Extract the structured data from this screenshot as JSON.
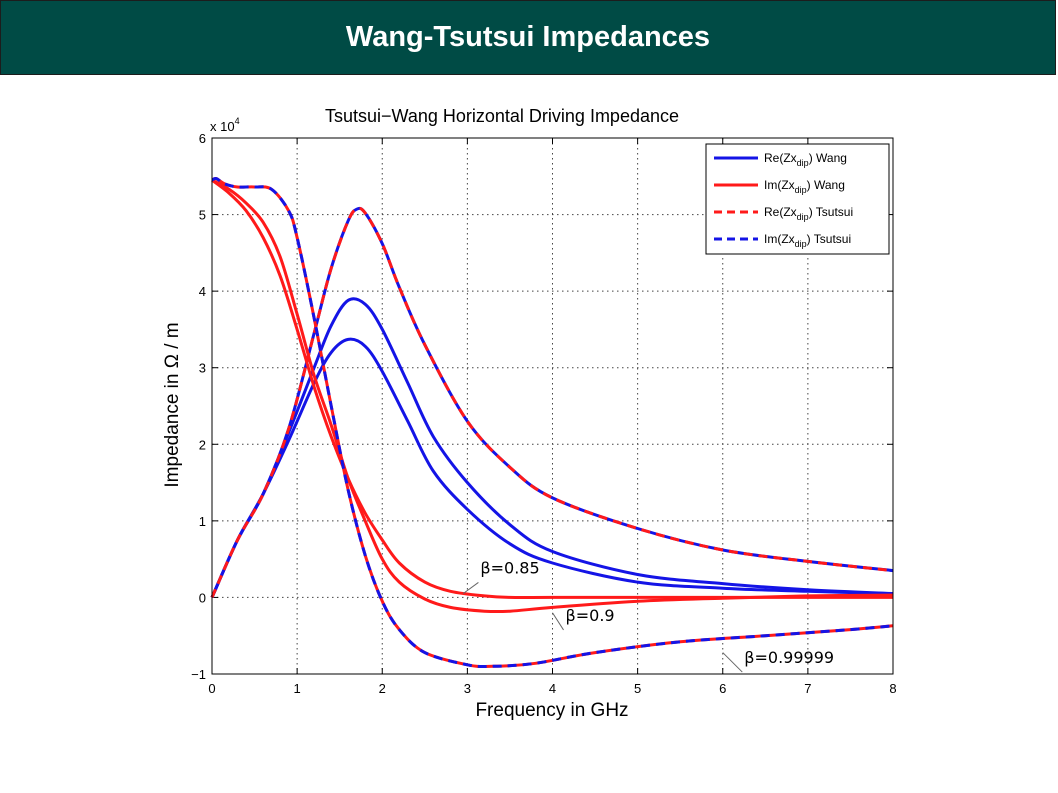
{
  "banner": {
    "title": "Wang-Tsutsui Impedances"
  },
  "colors": {
    "banner_bg": "#004b45",
    "red": "#ff1a1a",
    "blue": "#1414e6"
  },
  "chart_data": {
    "type": "line",
    "title": "Tsutsui−Wang Horizontal Driving Impedance",
    "xlabel": "Frequency in GHz",
    "ylabel": "Impedance in Ω / m",
    "y_multiplier": "x 10",
    "y_multiplier_exp": "4",
    "xlim": [
      0,
      8
    ],
    "ylim": [
      -1,
      6
    ],
    "xticks": [
      0,
      1,
      2,
      3,
      4,
      5,
      6,
      7,
      8
    ],
    "yticks": [
      -1,
      0,
      1,
      2,
      3,
      4,
      5,
      6
    ],
    "xtick_labels": [
      "0",
      "1",
      "2",
      "3",
      "4",
      "5",
      "6",
      "7",
      "8"
    ],
    "ytick_labels": [
      "−1",
      "0",
      "1",
      "2",
      "3",
      "4",
      "5",
      "6"
    ],
    "grid": true,
    "legend_position": "top-right",
    "legend": [
      {
        "base": "Re(Zx",
        "sub": "dip",
        "tail": ") Wang",
        "color": "blue",
        "dash": false
      },
      {
        "base": "Im(Zx",
        "sub": "dip",
        "tail": ") Wang",
        "color": "red",
        "dash": false
      },
      {
        "base": "Re(Zx",
        "sub": "dip",
        "tail": ") Tsutsui",
        "color": "red",
        "dash": true
      },
      {
        "base": "Im(Zx",
        "sub": "dip",
        "tail": ") Tsutsui",
        "color": "blue",
        "dash": true
      }
    ],
    "series": [
      {
        "group": "Re Wang β=0.99999",
        "color": "blue",
        "dash": false,
        "x": [
          0,
          0.3,
          0.6,
          0.9,
          1.2,
          1.4,
          1.6,
          1.7,
          1.8,
          2.0,
          2.2,
          2.5,
          3.0,
          3.5,
          4.0,
          5.0,
          6.0,
          7.0,
          8.0
        ],
        "y": [
          0,
          0.75,
          1.35,
          2.2,
          3.45,
          4.3,
          4.92,
          5.07,
          5.02,
          4.62,
          4.05,
          3.3,
          2.3,
          1.7,
          1.3,
          0.9,
          0.62,
          0.47,
          0.35
        ]
      },
      {
        "group": "Re Wang β=0.9",
        "color": "blue",
        "dash": false,
        "x": [
          0,
          0.3,
          0.6,
          0.9,
          1.2,
          1.4,
          1.6,
          1.8,
          2.0,
          2.3,
          2.6,
          3.0,
          3.5,
          4.0,
          5.0,
          6.0,
          7.0,
          8.0
        ],
        "y": [
          0,
          0.75,
          1.35,
          2.15,
          3.0,
          3.55,
          3.88,
          3.83,
          3.5,
          2.8,
          2.1,
          1.5,
          0.95,
          0.6,
          0.3,
          0.18,
          0.1,
          0.05
        ]
      },
      {
        "group": "Re Wang β=0.85",
        "color": "blue",
        "dash": false,
        "x": [
          0,
          0.3,
          0.6,
          0.9,
          1.2,
          1.4,
          1.6,
          1.8,
          2.0,
          2.3,
          2.6,
          3.0,
          3.5,
          4.0,
          5.0,
          6.0,
          7.0,
          8.0
        ],
        "y": [
          0,
          0.75,
          1.35,
          2.05,
          2.8,
          3.2,
          3.37,
          3.28,
          2.95,
          2.3,
          1.65,
          1.15,
          0.7,
          0.45,
          0.2,
          0.12,
          0.08,
          0.05
        ]
      },
      {
        "group": "Re Tsutsui β=0.99999",
        "color": "red",
        "dash": true,
        "x": [
          0,
          0.3,
          0.6,
          0.9,
          1.2,
          1.4,
          1.6,
          1.7,
          1.8,
          2.0,
          2.2,
          2.5,
          3.0,
          3.5,
          4.0,
          5.0,
          6.0,
          7.0,
          8.0
        ],
        "y": [
          0,
          0.75,
          1.35,
          2.2,
          3.45,
          4.3,
          4.92,
          5.07,
          5.02,
          4.62,
          4.05,
          3.3,
          2.3,
          1.7,
          1.3,
          0.9,
          0.62,
          0.47,
          0.35
        ]
      },
      {
        "group": "Im Wang β=0.99999",
        "color": "red",
        "dash": false,
        "x": [
          0,
          0.05,
          0.15,
          0.3,
          0.5,
          0.7,
          0.9,
          1.0,
          1.2,
          1.4,
          1.6,
          1.8,
          2.0,
          2.2,
          2.5,
          3.0,
          3.3,
          3.8,
          4.5,
          5.5,
          6.5,
          7.5,
          8.0
        ],
        "y": [
          5.45,
          5.47,
          5.4,
          5.36,
          5.36,
          5.33,
          5.05,
          4.7,
          3.65,
          2.5,
          1.4,
          0.55,
          -0.05,
          -0.42,
          -0.72,
          -0.88,
          -0.9,
          -0.86,
          -0.72,
          -0.58,
          -0.5,
          -0.42,
          -0.37
        ]
      },
      {
        "group": "Im Wang β=0.9",
        "color": "red",
        "dash": false,
        "x": [
          0,
          0.2,
          0.4,
          0.6,
          0.8,
          1.0,
          1.2,
          1.4,
          1.6,
          1.8,
          2.0,
          2.2,
          2.5,
          2.8,
          3.2,
          3.5,
          4.0,
          5.0,
          6.0,
          7.0,
          8.0
        ],
        "y": [
          5.45,
          5.33,
          5.15,
          4.9,
          4.45,
          3.7,
          2.9,
          2.25,
          1.55,
          1.0,
          0.5,
          0.2,
          -0.02,
          -0.13,
          -0.18,
          -0.18,
          -0.13,
          -0.05,
          -0.01,
          0.02,
          0.03
        ]
      },
      {
        "group": "Im Wang β=0.85",
        "color": "red",
        "dash": false,
        "x": [
          0,
          0.2,
          0.4,
          0.6,
          0.8,
          1.0,
          1.2,
          1.4,
          1.6,
          1.8,
          2.0,
          2.2,
          2.5,
          2.8,
          3.2,
          3.5,
          4.0,
          5.0,
          6.0,
          8.0
        ],
        "y": [
          5.45,
          5.28,
          5.05,
          4.7,
          4.2,
          3.5,
          2.75,
          2.1,
          1.55,
          1.1,
          0.75,
          0.45,
          0.2,
          0.08,
          0.02,
          0.0,
          0.0,
          0.0,
          0.0,
          0.0
        ]
      },
      {
        "group": "Im Tsutsui β=0.99999",
        "color": "blue",
        "dash": true,
        "x": [
          0,
          0.05,
          0.15,
          0.3,
          0.5,
          0.7,
          0.9,
          1.0,
          1.2,
          1.4,
          1.6,
          1.8,
          2.0,
          2.2,
          2.5,
          3.0,
          3.3,
          3.8,
          4.5,
          5.5,
          6.5,
          7.5,
          8.0
        ],
        "y": [
          5.45,
          5.47,
          5.4,
          5.36,
          5.36,
          5.33,
          5.05,
          4.7,
          3.65,
          2.5,
          1.4,
          0.55,
          -0.05,
          -0.42,
          -0.72,
          -0.88,
          -0.9,
          -0.86,
          -0.72,
          -0.58,
          -0.5,
          -0.42,
          -0.37
        ]
      }
    ],
    "annotations": [
      {
        "text": "β=0.85",
        "x": 3.2,
        "y": 0.3,
        "tx": 2.95,
        "ty": 0.05
      },
      {
        "text": "β=0.9",
        "x": 4.2,
        "y": -0.32,
        "tx": 4.0,
        "ty": -0.2
      },
      {
        "text": "β=0.99999",
        "x": 6.3,
        "y": -0.87,
        "tx": 6.0,
        "ty": -0.72
      }
    ]
  }
}
